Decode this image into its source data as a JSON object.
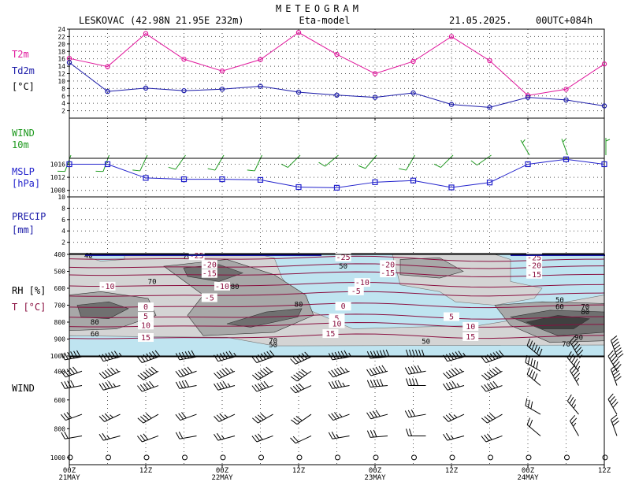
{
  "header": {
    "title": "METEOGRAM",
    "station": "LESKOVAC (42.98N 21.95E  232m)",
    "model": "Eta-model",
    "date": "21.05.2025.",
    "run": "00UTC+084h"
  },
  "time_axis": {
    "hours": [
      0,
      6,
      12,
      18,
      24,
      30,
      36,
      42,
      48,
      54,
      60,
      66,
      72,
      78,
      84
    ],
    "tick_labels": [
      {
        "hour": 0,
        "label": "00Z",
        "date": "21MAY"
      },
      {
        "hour": 12,
        "label": "12Z",
        "date": ""
      },
      {
        "hour": 24,
        "label": "00Z",
        "date": "22MAY"
      },
      {
        "hour": 36,
        "label": "12Z",
        "date": ""
      },
      {
        "hour": 48,
        "label": "00Z",
        "date": "23MAY"
      },
      {
        "hour": 60,
        "label": "12Z",
        "date": ""
      },
      {
        "hour": 72,
        "label": "00Z",
        "date": "24MAY"
      },
      {
        "hour": 84,
        "label": "12Z",
        "date": ""
      }
    ]
  },
  "labels": {
    "t2m": "T2m",
    "td2m": "Td2m",
    "temp_unit": "[°C]",
    "wind": "WIND",
    "wind_level": "10m",
    "mslp": "MSLP",
    "mslp_unit": "[hPa]",
    "precip": "PRECIP",
    "precip_unit": "[mm]",
    "rh": "RH [%]",
    "t": "T [°C]",
    "upper_wind": "WIND"
  },
  "colors": {
    "t2m": "#e0189c",
    "td2m": "#1a1aa8",
    "wind": "#1f9a1f",
    "mslp": "#2222cc",
    "precip": "#1a1aa8",
    "temp_iso": "#8a1040",
    "cold_fill": "#bfe4f0"
  },
  "chart_data": [
    {
      "type": "line",
      "name": "temperature-panel",
      "ylim": [
        0,
        24
      ],
      "yticks": [
        2,
        4,
        6,
        8,
        10,
        12,
        14,
        16,
        18,
        20,
        22,
        24
      ],
      "series": [
        {
          "name": "T2m",
          "x": [
            0,
            6,
            12,
            18,
            24,
            30,
            36,
            42,
            48,
            54,
            60,
            66,
            72,
            78,
            84
          ],
          "values": [
            16.1,
            13.9,
            22.8,
            15.9,
            12.7,
            15.8,
            23.1,
            17.2,
            12.0,
            15.3,
            22.0,
            15.5,
            6.1,
            7.8,
            14.6
          ]
        },
        {
          "name": "Td2m",
          "x": [
            0,
            6,
            12,
            18,
            24,
            30,
            36,
            42,
            48,
            54,
            60,
            66,
            72,
            78,
            84
          ],
          "values": [
            15.0,
            7.2,
            8.1,
            7.4,
            7.8,
            8.6,
            7.0,
            6.2,
            5.6,
            6.8,
            3.7,
            2.9,
            5.6,
            4.9,
            3.3
          ]
        }
      ]
    },
    {
      "type": "line",
      "name": "mslp-panel",
      "ylim": [
        1006,
        1017.8
      ],
      "yticks": [
        1008,
        1012,
        1016
      ],
      "x": [
        0,
        6,
        12,
        18,
        24,
        30,
        36,
        42,
        48,
        54,
        60,
        66,
        72,
        78,
        84
      ],
      "values": [
        1016.0,
        1016.0,
        1011.8,
        1011.4,
        1011.4,
        1011.2,
        1009.0,
        1008.8,
        1010.5,
        1011.0,
        1008.9,
        1010.4,
        1016.0,
        1017.5,
        1016.0
      ]
    },
    {
      "type": "bar",
      "name": "precip-panel",
      "ylim": [
        0,
        10
      ],
      "yticks": [
        2,
        4,
        6,
        8,
        10
      ],
      "x": [
        0,
        6,
        12,
        18,
        24,
        30,
        36,
        42,
        48,
        54,
        60,
        66,
        72,
        78,
        84
      ],
      "values": [
        0,
        0,
        0,
        0,
        0,
        0,
        0,
        0,
        0,
        0,
        0,
        0,
        0,
        0,
        0
      ]
    },
    {
      "type": "heatmap",
      "name": "rh-temperature-cross-section",
      "ylim": [
        1000,
        400
      ],
      "yticks": [
        400,
        500,
        600,
        700,
        800,
        900,
        1000
      ],
      "yunit": "hPa",
      "rh_labels": [
        {
          "hour": 3,
          "p": 408,
          "text": "40"
        },
        {
          "hour": 4,
          "p": 800,
          "text": "80"
        },
        {
          "hour": 4,
          "p": 870,
          "text": "60"
        },
        {
          "hour": 13,
          "p": 560,
          "text": "70"
        },
        {
          "hour": 18.5,
          "p": 410,
          "text": "70"
        },
        {
          "hour": 26,
          "p": 590,
          "text": "80"
        },
        {
          "hour": 32,
          "p": 910,
          "text": "70"
        },
        {
          "hour": 32,
          "p": 935,
          "text": "50"
        },
        {
          "hour": 36,
          "p": 695,
          "text": "80"
        },
        {
          "hour": 43,
          "p": 470,
          "text": "50"
        },
        {
          "hour": 56,
          "p": 915,
          "text": "50"
        },
        {
          "hour": 77,
          "p": 670,
          "text": "50"
        },
        {
          "hour": 77,
          "p": 710,
          "text": "60"
        },
        {
          "hour": 81,
          "p": 710,
          "text": "70"
        },
        {
          "hour": 81,
          "p": 740,
          "text": "80"
        },
        {
          "hour": 80,
          "p": 890,
          "text": "90"
        },
        {
          "hour": 78,
          "p": 930,
          "text": "70"
        }
      ],
      "temp_labels": [
        {
          "hour": 20,
          "p": 410,
          "text": "-25"
        },
        {
          "hour": 22,
          "p": 462,
          "text": "-20"
        },
        {
          "hour": 22,
          "p": 515,
          "text": "-15"
        },
        {
          "hour": 6,
          "p": 590,
          "text": "-10"
        },
        {
          "hour": 24,
          "p": 590,
          "text": "-10"
        },
        {
          "hour": 22,
          "p": 658,
          "text": "-5"
        },
        {
          "hour": 12,
          "p": 712,
          "text": "0"
        },
        {
          "hour": 12,
          "p": 768,
          "text": "5"
        },
        {
          "hour": 12,
          "p": 820,
          "text": "10"
        },
        {
          "hour": 12,
          "p": 893,
          "text": "15"
        },
        {
          "hour": 43,
          "p": 418,
          "text": "-25"
        },
        {
          "hour": 50,
          "p": 462,
          "text": "-20"
        },
        {
          "hour": 50,
          "p": 512,
          "text": "-15"
        },
        {
          "hour": 46,
          "p": 568,
          "text": "-10"
        },
        {
          "hour": 45,
          "p": 618,
          "text": "-5"
        },
        {
          "hour": 43,
          "p": 708,
          "text": "0"
        },
        {
          "hour": 42,
          "p": 778,
          "text": "5"
        },
        {
          "hour": 42,
          "p": 812,
          "text": "10"
        },
        {
          "hour": 41,
          "p": 870,
          "text": "15"
        },
        {
          "hour": 60,
          "p": 770,
          "text": "5"
        },
        {
          "hour": 63,
          "p": 828,
          "text": "10"
        },
        {
          "hour": 63,
          "p": 888,
          "text": "15"
        },
        {
          "hour": 73,
          "p": 420,
          "text": "-25"
        },
        {
          "hour": 73,
          "p": 468,
          "text": "-20"
        },
        {
          "hour": 73,
          "p": 520,
          "text": "-15"
        }
      ]
    },
    {
      "type": "scatter",
      "name": "upper-wind-panel",
      "ylim": [
        1050,
        300
      ],
      "yticks": [
        400,
        600,
        800,
        1000
      ],
      "yunit": "hPa",
      "x": [
        0,
        6,
        12,
        18,
        24,
        30,
        36,
        42,
        48,
        54,
        60,
        66,
        72,
        78,
        84
      ],
      "levels": [
        1000,
        850,
        700,
        500,
        400,
        300
      ]
    }
  ]
}
